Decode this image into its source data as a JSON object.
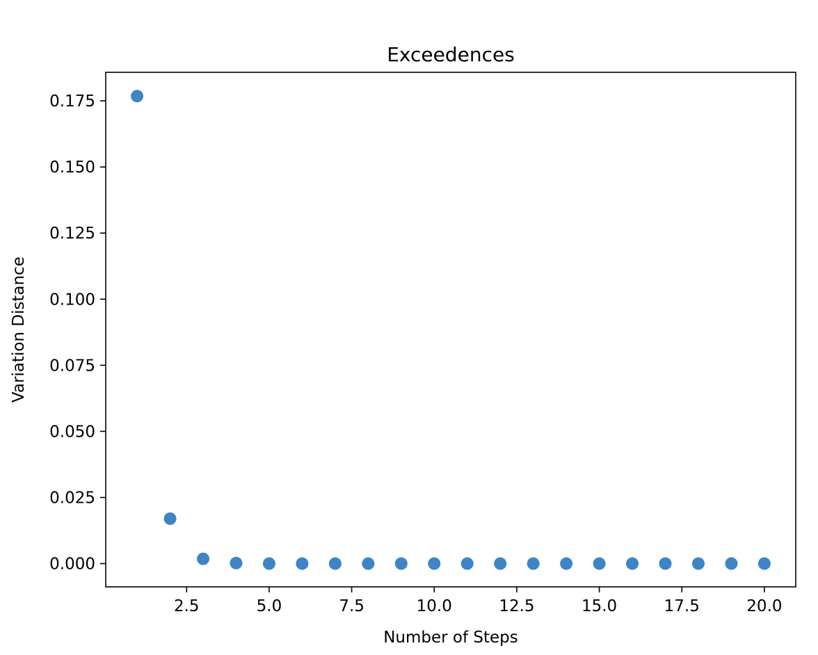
{
  "chart_data": {
    "type": "scatter",
    "title": "Exceedences",
    "xlabel": "Number of Steps",
    "ylabel": "Variation Distance",
    "xlim": [
      0.05,
      20.95
    ],
    "ylim": [
      -0.0088,
      0.1858
    ],
    "xticks": [
      2.5,
      5.0,
      7.5,
      10.0,
      12.5,
      15.0,
      17.5,
      20.0
    ],
    "xtick_labels": [
      "2.5",
      "5.0",
      "7.5",
      "10.0",
      "12.5",
      "15.0",
      "17.5",
      "20.0"
    ],
    "yticks": [
      0.0,
      0.025,
      0.05,
      0.075,
      0.1,
      0.125,
      0.15,
      0.175
    ],
    "ytick_labels": [
      "0.000",
      "0.025",
      "0.050",
      "0.075",
      "0.100",
      "0.125",
      "0.150",
      "0.175"
    ],
    "grid": false,
    "marker_color": "#3d85c6",
    "x": [
      1,
      2,
      3,
      4,
      5,
      6,
      7,
      8,
      9,
      10,
      11,
      12,
      13,
      14,
      15,
      16,
      17,
      18,
      19,
      20
    ],
    "y": [
      0.1768,
      0.017,
      0.0018,
      0.0002,
      0.0,
      0.0,
      0.0,
      0.0,
      0.0,
      0.0,
      0.0,
      0.0,
      0.0,
      0.0,
      0.0,
      0.0,
      0.0,
      0.0,
      0.0,
      0.0
    ]
  }
}
